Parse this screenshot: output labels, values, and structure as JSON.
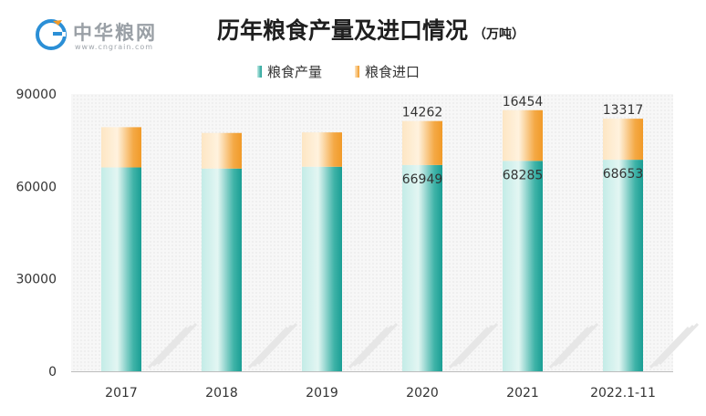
{
  "logo": {
    "name": "中华粮网",
    "url": "www.cngrain.com"
  },
  "title": "历年粮食产量及进口情况",
  "unit": "（万吨）",
  "colors": {
    "production": "#1a9e94",
    "production_light": "#c4ece7",
    "import": "#f19a28",
    "import_light": "#fde6c4"
  },
  "chart_data": {
    "type": "bar",
    "stacked": true,
    "title": "历年粮食产量及进口情况",
    "unit": "万吨",
    "categories": [
      "2017",
      "2018",
      "2019",
      "2020",
      "2021",
      "2022.1-11"
    ],
    "series": [
      {
        "name": "粮食产量",
        "values": [
          66161,
          65789,
          66384,
          66949,
          68285,
          68653
        ]
      },
      {
        "name": "粮食进口",
        "values": [
          13062,
          11555,
          11144,
          14262,
          16454,
          13317
        ]
      }
    ],
    "data_labels": {
      "粮食产量": [
        null,
        null,
        null,
        "66949",
        "68285",
        "68653"
      ],
      "粮食进口": [
        null,
        null,
        null,
        "14262",
        "16454",
        "13317"
      ]
    },
    "yticks": [
      "0",
      "30000",
      "60000",
      "90000"
    ],
    "ylim": [
      0,
      90000
    ],
    "legend": "top-center"
  }
}
